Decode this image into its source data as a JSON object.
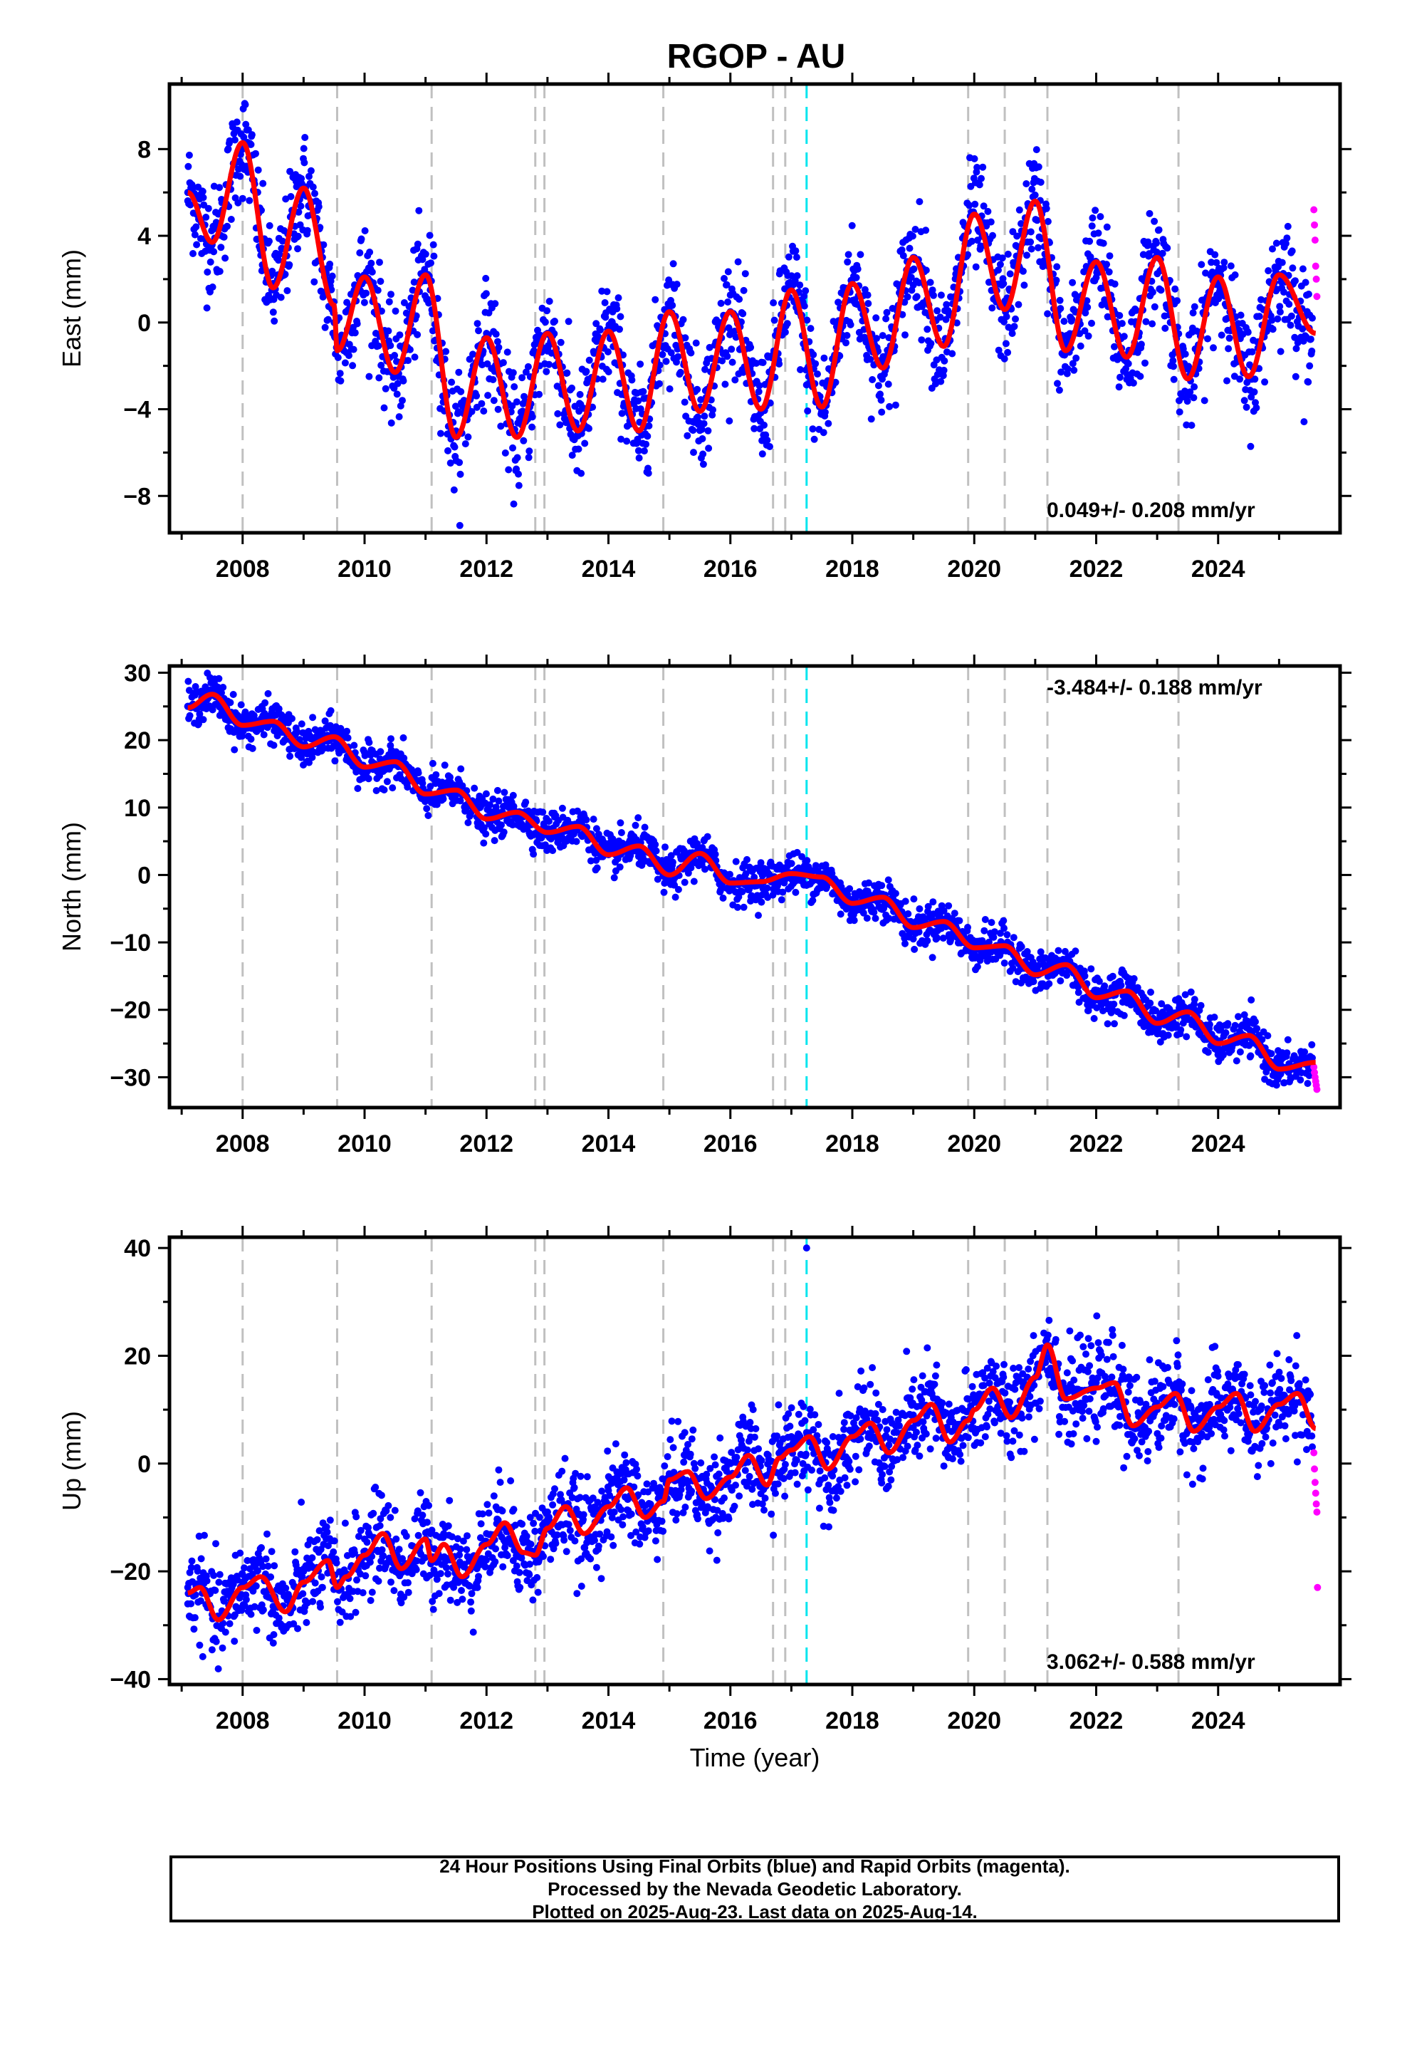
{
  "title": "RGOP - AU",
  "xlabel": "Time (year)",
  "caption": {
    "line1": "24 Hour Positions Using Final Orbits (blue) and Rapid Orbits (magenta).",
    "line2": "Processed by the Nevada Geodetic Laboratory.",
    "line3": "Plotted on 2025-Aug-23. Last data on 2025-Aug-14."
  },
  "colors": {
    "final_orbits": "#0000ff",
    "rapid_orbits": "#ff00ff",
    "model_fit": "#ff0000",
    "event_lines": "#c0c0c0",
    "highlight_event": "#00e5ee"
  },
  "chart_data": [
    {
      "type": "scatter",
      "panel": "east",
      "ylabel": "East (mm)",
      "xlim": [
        2006.8,
        2026.0
      ],
      "ylim": [
        -9.7,
        11.0
      ],
      "xticks": [
        2008,
        2010,
        2012,
        2014,
        2016,
        2018,
        2020,
        2022,
        2024
      ],
      "yticks": [
        -8,
        -4,
        0,
        4,
        8
      ],
      "rate_label": "0.049+/- 0.208 mm/yr",
      "rate_position": "bottom-right",
      "event_years": [
        2008.0,
        2009.55,
        2011.1,
        2012.8,
        2012.95,
        2014.9,
        2016.7,
        2016.9,
        2019.9,
        2020.5,
        2021.2,
        2023.35
      ],
      "highlight_event_year": 2017.25,
      "series": [
        {
          "name": "Final Orbits",
          "type": "scatter",
          "color": "#0000ff",
          "x": [
            2007.1,
            2007.5,
            2008.0,
            2008.5,
            2009.0,
            2009.5,
            2010.0,
            2010.5,
            2011.0,
            2011.5,
            2012.0,
            2012.5,
            2013.0,
            2013.5,
            2014.0,
            2014.5,
            2015.0,
            2015.5,
            2016.0,
            2016.5,
            2017.0,
            2017.5,
            2018.0,
            2018.5,
            2019.0,
            2019.5,
            2020.0,
            2020.5,
            2021.0,
            2021.5,
            2022.0,
            2022.5,
            2023.0,
            2023.5,
            2024.0,
            2024.5,
            2025.0,
            2025.5
          ],
          "y": [
            6.0,
            3.7,
            8.0,
            1.8,
            6.0,
            0.0,
            2.0,
            -2.2,
            2.0,
            -5.0,
            -0.5,
            -5.2,
            -0.5,
            -5.0,
            -0.5,
            -5.0,
            0.5,
            -4.0,
            0.5,
            -4.0,
            1.5,
            -3.8,
            1.8,
            -2.0,
            3.0,
            -1.0,
            5.0,
            0.8,
            5.5,
            -1.3,
            2.8,
            -1.5,
            3.0,
            -2.5,
            2.2,
            -2.5,
            2.2,
            -2.0
          ]
        },
        {
          "name": "Rapid Orbits",
          "type": "scatter",
          "color": "#ff00ff",
          "x": [
            2025.57,
            2025.58,
            2025.59,
            2025.6,
            2025.61,
            2025.62
          ],
          "y": [
            5.2,
            4.5,
            3.8,
            2.6,
            2.0,
            1.2
          ]
        },
        {
          "name": "Model",
          "type": "line",
          "color": "#ff0000",
          "x": [
            2007.1,
            2007.5,
            2008.0,
            2008.5,
            2009.0,
            2009.5,
            2009.55,
            2010.0,
            2010.5,
            2011.0,
            2011.5,
            2012.0,
            2012.5,
            2013.0,
            2013.5,
            2014.0,
            2014.5,
            2015.0,
            2015.5,
            2016.0,
            2016.5,
            2017.0,
            2017.5,
            2018.0,
            2018.5,
            2019.0,
            2019.5,
            2020.0,
            2020.5,
            2021.0,
            2021.5,
            2022.0,
            2022.5,
            2023.0,
            2023.5,
            2024.0,
            2024.5,
            2025.0,
            2025.6
          ],
          "y": [
            6.0,
            3.7,
            8.3,
            1.6,
            6.2,
            0.8,
            -1.3,
            2.1,
            -2.3,
            2.2,
            -5.3,
            -0.7,
            -5.3,
            -0.5,
            -5.0,
            -0.4,
            -5.0,
            0.5,
            -4.1,
            0.5,
            -4.0,
            1.5,
            -3.9,
            1.8,
            -2.1,
            3.0,
            -1.1,
            5.0,
            0.6,
            5.6,
            -1.3,
            2.8,
            -1.6,
            3.0,
            -2.6,
            2.1,
            -2.5,
            2.2,
            -0.5
          ]
        }
      ]
    },
    {
      "type": "scatter",
      "panel": "north",
      "ylabel": "North (mm)",
      "xlim": [
        2006.8,
        2026.0
      ],
      "ylim": [
        -34.5,
        31.0
      ],
      "xticks": [
        2008,
        2010,
        2012,
        2014,
        2016,
        2018,
        2020,
        2022,
        2024
      ],
      "yticks": [
        -30,
        -20,
        -10,
        0,
        10,
        20,
        30
      ],
      "rate_label": "-3.484+/- 0.188 mm/yr",
      "rate_position": "top-right",
      "event_years": [
        2008.0,
        2009.55,
        2011.1,
        2012.8,
        2012.95,
        2014.9,
        2016.7,
        2016.9,
        2019.9,
        2020.5,
        2021.2,
        2023.35
      ],
      "highlight_event_year": 2017.25,
      "series": [
        {
          "name": "Final Orbits",
          "type": "scatter",
          "color": "#0000ff",
          "x": [
            2007.1,
            2007.5,
            2008.0,
            2008.5,
            2009.0,
            2009.5,
            2010.0,
            2010.5,
            2011.0,
            2011.5,
            2012.0,
            2012.5,
            2013.0,
            2013.5,
            2014.0,
            2014.5,
            2015.0,
            2015.5,
            2016.0,
            2016.5,
            2017.0,
            2017.5,
            2018.0,
            2018.5,
            2019.0,
            2019.5,
            2020.0,
            2020.5,
            2021.0,
            2021.5,
            2022.0,
            2022.5,
            2023.0,
            2023.5,
            2024.0,
            2024.5,
            2025.0,
            2025.5
          ],
          "y": [
            25.0,
            27.0,
            22.0,
            22.5,
            19.0,
            20.5,
            16.0,
            16.5,
            12.0,
            12.5,
            8.5,
            9.0,
            6.5,
            7.0,
            3.0,
            4.0,
            0.0,
            3.0,
            -1.0,
            -1.0,
            0.0,
            -0.5,
            -4.0,
            -3.5,
            -7.5,
            -7.0,
            -10.5,
            -11.0,
            -14.5,
            -13.5,
            -18.0,
            -18.5,
            -22.0,
            -20.5,
            -25.0,
            -24.0,
            -28.5,
            -27.5
          ]
        },
        {
          "name": "Rapid Orbits",
          "type": "scatter",
          "color": "#ff00ff",
          "x": [
            2025.57,
            2025.58,
            2025.59,
            2025.6,
            2025.61,
            2025.62
          ],
          "y": [
            -28.5,
            -29.3,
            -30.0,
            -30.6,
            -31.2,
            -31.8
          ]
        },
        {
          "name": "Model",
          "type": "line",
          "color": "#ff0000",
          "x": [
            2007.1,
            2007.5,
            2008.0,
            2008.5,
            2009.0,
            2009.5,
            2010.0,
            2010.5,
            2011.0,
            2011.5,
            2012.0,
            2012.5,
            2013.0,
            2013.5,
            2014.0,
            2014.5,
            2015.0,
            2015.5,
            2016.0,
            2016.5,
            2017.0,
            2017.5,
            2018.0,
            2018.5,
            2019.0,
            2019.5,
            2020.0,
            2020.5,
            2021.0,
            2021.5,
            2022.0,
            2022.5,
            2023.0,
            2023.5,
            2024.0,
            2024.5,
            2025.0,
            2025.6
          ],
          "y": [
            24.8,
            26.8,
            22.2,
            22.8,
            19.0,
            20.5,
            16.0,
            16.8,
            12.0,
            12.6,
            8.3,
            9.3,
            6.3,
            7.2,
            3.0,
            4.3,
            0.0,
            3.2,
            -1.2,
            -1.0,
            0.2,
            -0.3,
            -4.2,
            -3.3,
            -7.8,
            -6.9,
            -10.8,
            -10.5,
            -14.8,
            -13.3,
            -18.2,
            -17.2,
            -22.0,
            -20.3,
            -25.0,
            -23.8,
            -28.8,
            -27.8
          ]
        }
      ]
    },
    {
      "type": "scatter",
      "panel": "up",
      "ylabel": "Up (mm)",
      "xlim": [
        2006.8,
        2026.0
      ],
      "ylim": [
        -41.0,
        42.0
      ],
      "xticks": [
        2008,
        2010,
        2012,
        2014,
        2016,
        2018,
        2020,
        2022,
        2024
      ],
      "yticks": [
        -40,
        -20,
        0,
        20,
        40
      ],
      "rate_label": "3.062+/- 0.588 mm/yr",
      "rate_position": "bottom-right",
      "event_years": [
        2008.0,
        2009.55,
        2011.1,
        2012.8,
        2012.95,
        2014.9,
        2016.7,
        2016.9,
        2019.9,
        2020.5,
        2021.2,
        2023.35
      ],
      "highlight_event_year": 2017.25,
      "series": [
        {
          "name": "Final Orbits",
          "type": "scatter",
          "color": "#0000ff",
          "x": [
            2007.1,
            2007.5,
            2008.0,
            2008.5,
            2009.0,
            2009.5,
            2010.0,
            2010.5,
            2011.0,
            2011.5,
            2012.0,
            2012.5,
            2013.0,
            2013.5,
            2014.0,
            2014.5,
            2015.0,
            2015.5,
            2016.0,
            2016.5,
            2017.0,
            2017.25,
            2017.5,
            2018.0,
            2018.5,
            2019.0,
            2019.5,
            2020.0,
            2020.5,
            2021.0,
            2021.5,
            2022.0,
            2022.5,
            2023.0,
            2023.5,
            2024.0,
            2024.5,
            2025.0,
            2025.5
          ],
          "y": [
            -23.0,
            -28.0,
            -22.0,
            -26.5,
            -20.0,
            -22.0,
            -14.0,
            -19.0,
            -14.0,
            -19.0,
            -13.0,
            -16.0,
            -9.0,
            -13.0,
            -5.0,
            -9.0,
            -3.0,
            -5.0,
            0.0,
            -3.0,
            5.0,
            40.0,
            0.0,
            5.0,
            3.0,
            9.0,
            5.0,
            12.0,
            9.0,
            16.0,
            12.0,
            15.0,
            7.0,
            10.0,
            6.0,
            11.0,
            5.0,
            11.0,
            8.0
          ]
        },
        {
          "name": "Rapid Orbits",
          "type": "scatter",
          "color": "#ff00ff",
          "x": [
            2025.57,
            2025.58,
            2025.59,
            2025.6,
            2025.61,
            2025.62,
            2025.63
          ],
          "y": [
            2.0,
            -1.0,
            -3.5,
            -5.5,
            -7.5,
            -9.0,
            -23.0
          ]
        },
        {
          "name": "Model",
          "type": "line",
          "color": "#ff0000",
          "x": [
            2007.1,
            2007.3,
            2007.6,
            2008.0,
            2008.3,
            2008.7,
            2009.0,
            2009.4,
            2009.55,
            2009.7,
            2010.0,
            2010.3,
            2010.6,
            2011.0,
            2011.1,
            2011.3,
            2011.6,
            2012.0,
            2012.3,
            2012.6,
            2012.8,
            2013.0,
            2013.3,
            2013.6,
            2014.0,
            2014.3,
            2014.6,
            2014.9,
            2015.0,
            2015.3,
            2015.6,
            2016.0,
            2016.3,
            2016.6,
            2016.8,
            2017.0,
            2017.3,
            2017.6,
            2018.0,
            2018.3,
            2018.6,
            2019.0,
            2019.3,
            2019.6,
            2019.9,
            2020.0,
            2020.3,
            2020.6,
            2021.0,
            2021.2,
            2021.5,
            2022.0,
            2022.3,
            2022.6,
            2023.0,
            2023.3,
            2023.6,
            2024.0,
            2024.3,
            2024.6,
            2025.0,
            2025.3,
            2025.6
          ],
          "y": [
            -24.0,
            -23.0,
            -29.0,
            -23.0,
            -21.0,
            -27.5,
            -22.0,
            -18.0,
            -23.0,
            -21.0,
            -17.0,
            -13.0,
            -19.5,
            -14.0,
            -18.0,
            -15.0,
            -21.0,
            -15.0,
            -11.0,
            -16.5,
            -17.0,
            -12.0,
            -8.0,
            -13.0,
            -8.0,
            -4.5,
            -10.0,
            -7.0,
            -3.0,
            -1.5,
            -6.5,
            -2.5,
            1.5,
            -4.0,
            1.0,
            2.5,
            5.0,
            -1.0,
            5.0,
            7.5,
            2.0,
            8.0,
            11.0,
            4.0,
            8.0,
            10.0,
            14.0,
            8.5,
            16.0,
            22.0,
            12.0,
            14.0,
            15.0,
            7.0,
            10.5,
            13.0,
            6.0,
            10.5,
            13.0,
            6.0,
            11.0,
            13.0,
            6.5
          ]
        }
      ]
    }
  ]
}
